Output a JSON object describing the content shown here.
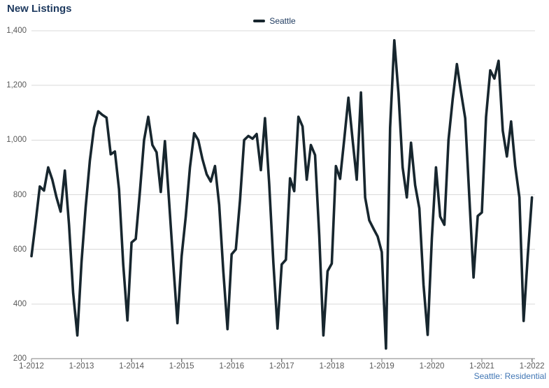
{
  "title": "New Listings",
  "legend": {
    "label": "Seattle",
    "swatch_color": "#17262e"
  },
  "footer": {
    "label": "Seattle: Residential",
    "color": "#4076b4"
  },
  "chart_data": {
    "type": "line",
    "title": "New Listings",
    "xlabel": "",
    "ylabel": "",
    "ylim": [
      200,
      1400
    ],
    "grid": "horizontal",
    "legend_position": "top-center",
    "colors": {
      "grid": "#d9d9d9",
      "axis": "#7f7f7f",
      "tick_text": "#595959",
      "title": "#1e3a5f"
    },
    "y_ticks": [
      200,
      400,
      600,
      800,
      1000,
      1200,
      1400
    ],
    "y_tick_labels": [
      "200",
      "400",
      "600",
      "800",
      "1,000",
      "1,200",
      "1,400"
    ],
    "x_tick_labels": [
      "1-2012",
      "1-2013",
      "1-2014",
      "1-2015",
      "1-2016",
      "1-2017",
      "1-2018",
      "1-2019",
      "1-2020",
      "1-2021",
      "1-2022"
    ],
    "x_tick_month_indices": [
      0,
      12,
      24,
      36,
      48,
      60,
      72,
      84,
      96,
      108,
      120
    ],
    "months": [
      "2012-01",
      "2012-02",
      "2012-03",
      "2012-04",
      "2012-05",
      "2012-06",
      "2012-07",
      "2012-08",
      "2012-09",
      "2012-10",
      "2012-11",
      "2012-12",
      "2013-01",
      "2013-02",
      "2013-03",
      "2013-04",
      "2013-05",
      "2013-06",
      "2013-07",
      "2013-08",
      "2013-09",
      "2013-10",
      "2013-11",
      "2013-12",
      "2014-01",
      "2014-02",
      "2014-03",
      "2014-04",
      "2014-05",
      "2014-06",
      "2014-07",
      "2014-08",
      "2014-09",
      "2014-10",
      "2014-11",
      "2014-12",
      "2015-01",
      "2015-02",
      "2015-03",
      "2015-04",
      "2015-05",
      "2015-06",
      "2015-07",
      "2015-08",
      "2015-09",
      "2015-10",
      "2015-11",
      "2015-12",
      "2016-01",
      "2016-02",
      "2016-03",
      "2016-04",
      "2016-05",
      "2016-06",
      "2016-07",
      "2016-08",
      "2016-09",
      "2016-10",
      "2016-11",
      "2016-12",
      "2017-01",
      "2017-02",
      "2017-03",
      "2017-04",
      "2017-05",
      "2017-06",
      "2017-07",
      "2017-08",
      "2017-09",
      "2017-10",
      "2017-11",
      "2017-12",
      "2018-01",
      "2018-02",
      "2018-03",
      "2018-04",
      "2018-05",
      "2018-06",
      "2018-07",
      "2018-08",
      "2018-09",
      "2018-10",
      "2018-11",
      "2018-12",
      "2019-01",
      "2019-02",
      "2019-03",
      "2019-04",
      "2019-05",
      "2019-06",
      "2019-07",
      "2019-08",
      "2019-09",
      "2019-10",
      "2019-11",
      "2019-12",
      "2020-01",
      "2020-02",
      "2020-03",
      "2020-04",
      "2020-05",
      "2020-06",
      "2020-07",
      "2020-08",
      "2020-09",
      "2020-10",
      "2020-11",
      "2020-12",
      "2021-01",
      "2021-02",
      "2021-03",
      "2021-04",
      "2021-05",
      "2021-06",
      "2021-07",
      "2021-08",
      "2021-09",
      "2021-10",
      "2021-11",
      "2021-12",
      "2022-01"
    ],
    "series": [
      {
        "name": "Seattle",
        "color": "#17262e",
        "values": [
          575,
          700,
          830,
          815,
          900,
          855,
          790,
          738,
          888,
          690,
          440,
          285,
          555,
          755,
          925,
          1045,
          1105,
          1092,
          1082,
          948,
          958,
          820,
          545,
          340,
          625,
          638,
          810,
          1000,
          1085,
          982,
          955,
          810,
          996,
          775,
          545,
          330,
          575,
          720,
          900,
          1025,
          1000,
          930,
          875,
          848,
          905,
          763,
          520,
          308,
          582,
          600,
          780,
          1000,
          1015,
          1005,
          1022,
          890,
          1080,
          840,
          550,
          310,
          545,
          562,
          860,
          813,
          1085,
          1050,
          855,
          982,
          945,
          650,
          285,
          520,
          548,
          905,
          858,
          1005,
          1155,
          1000,
          855,
          1174,
          790,
          706,
          676,
          647,
          590,
          237,
          1045,
          1365,
          1170,
          900,
          790,
          990,
          835,
          750,
          470,
          287,
          640,
          900,
          720,
          690,
          1000,
          1150,
          1278,
          1175,
          1080,
          790,
          497,
          722,
          735,
          1085,
          1255,
          1225,
          1290,
          1034,
          940,
          1068,
          905,
          790,
          338,
          575,
          790
        ]
      }
    ]
  }
}
